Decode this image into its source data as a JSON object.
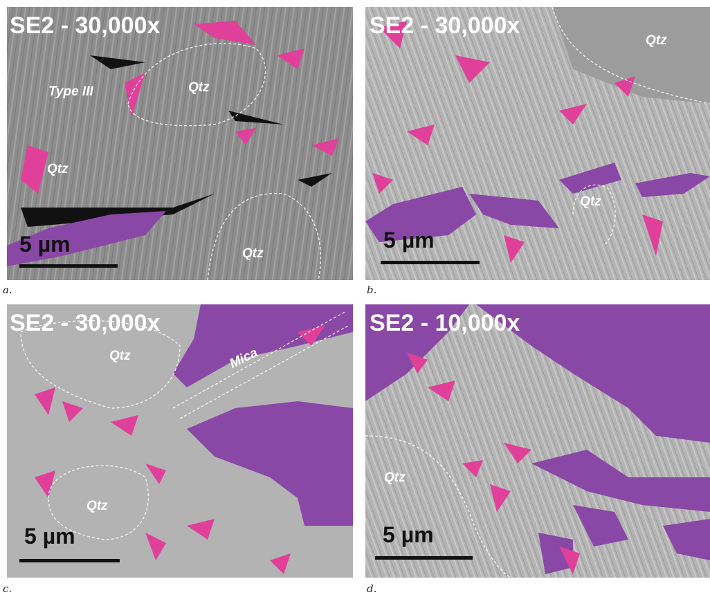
{
  "panels": [
    {
      "magnification": "SE2 - 30,000x",
      "scale": "5 µm",
      "caption": "a.",
      "annotations": [
        "Type III",
        "Qtz",
        "Qtz",
        "Qtz"
      ]
    },
    {
      "magnification": "SE2 - 30,000x",
      "scale": "5 µm",
      "caption": "b.",
      "annotations": [
        "Qtz",
        "Qtz"
      ]
    },
    {
      "magnification": "SE2 - 30,000x",
      "scale": "5 µm",
      "caption": "c.",
      "annotations": [
        "Qtz",
        "Mica",
        "Qtz"
      ]
    },
    {
      "magnification": "SE2 - 10,000x",
      "scale": "5 µm",
      "caption": "d.",
      "annotations": [
        "Qtz"
      ]
    }
  ]
}
